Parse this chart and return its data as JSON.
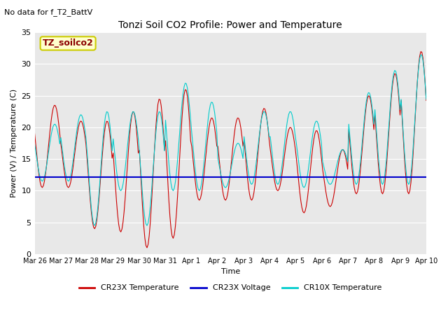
{
  "title": "Tonzi Soil CO2 Profile: Power and Temperature",
  "subtitle": "No data for f_T2_BattV",
  "ylabel": "Power (V) / Temperature (C)",
  "xlabel": "Time",
  "ylim": [
    0,
    35
  ],
  "yticks": [
    0,
    5,
    10,
    15,
    20,
    25,
    30,
    35
  ],
  "bg_color": "#e8e8e8",
  "fig_color": "#ffffff",
  "legend_label": "TZ_soilco2",
  "legend_bg": "#ffffcc",
  "legend_edge": "#cccc00",
  "voltage_value": 12.1,
  "cr23x_temp_color": "#cc0000",
  "cr10x_temp_color": "#00cccc",
  "voltage_color": "#0000cc",
  "tick_dates": [
    "Mar 26",
    "Mar 27",
    "Mar 28",
    "Mar 29",
    "Mar 30",
    "Mar 31",
    "Apr 1",
    "Apr 2",
    "Apr 3",
    "Apr 4",
    "Apr 5",
    "Apr 6",
    "Apr 7",
    "Apr 8",
    "Apr 9",
    "Apr 10"
  ],
  "n_days": 15
}
